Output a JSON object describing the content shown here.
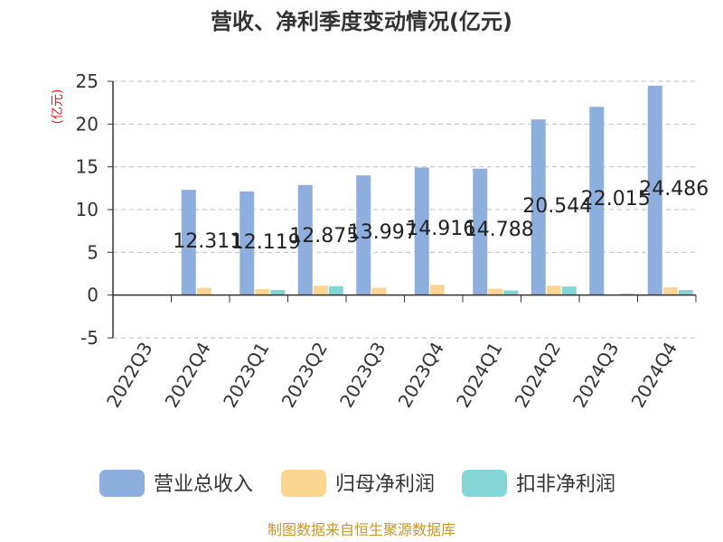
{
  "chart_data": {
    "type": "bar",
    "title": "营收、净利季度变动情况(亿元)",
    "ylabel": "(亿元)",
    "xlabel": "",
    "ylim": [
      -5,
      25
    ],
    "yticks": [
      -5,
      0,
      5,
      10,
      15,
      20,
      25
    ],
    "grid": true,
    "legend_position": "bottom",
    "categories": [
      "2022Q3",
      "2022Q4",
      "2023Q1",
      "2023Q2",
      "2023Q3",
      "2023Q4",
      "2024Q1",
      "2024Q2",
      "2024Q3",
      "2024Q4"
    ],
    "series": [
      {
        "name": "营业总收入",
        "color": "#8eaede",
        "values": [
          null,
          12.311,
          12.119,
          12.875,
          13.997,
          14.916,
          14.788,
          20.544,
          22.015,
          24.486
        ],
        "labels": [
          "",
          "12.311",
          "12.119",
          "12.875",
          "13.997",
          "14.916",
          "14.788",
          "20.544",
          "22.015",
          "24.486"
        ]
      },
      {
        "name": "归母净利润",
        "color": "#fdd592",
        "values": [
          null,
          0.85,
          0.7,
          1.1,
          0.85,
          1.2,
          0.75,
          1.1,
          0.05,
          0.9
        ]
      },
      {
        "name": "扣非净利润",
        "color": "#86d5d6",
        "values": [
          null,
          null,
          0.6,
          1.05,
          null,
          null,
          0.55,
          1.0,
          0.15,
          0.6
        ]
      }
    ]
  },
  "source": "制图数据来自恒生聚源数据库"
}
